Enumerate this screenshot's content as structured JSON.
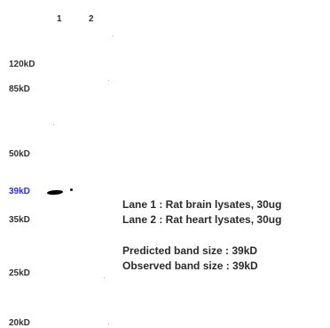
{
  "lanes": [
    "1",
    "2"
  ],
  "markers": [
    {
      "label": "120kD",
      "highlight": false
    },
    {
      "label": "85kD",
      "highlight": false
    },
    {
      "label": "50kD",
      "highlight": false
    },
    {
      "label": "39kD",
      "highlight": true
    },
    {
      "label": "35kD",
      "highlight": false
    },
    {
      "label": "25kD",
      "highlight": false
    },
    {
      "label": "20kD",
      "highlight": false
    }
  ],
  "legend": {
    "lane1": "Lane 1 : Rat brain lysates, 30ug",
    "lane2": "Lane 2 : Rat heart lysates, 30ug",
    "predicted": "Predicted band size : 39kD",
    "observed": "Observed band size : 39kD"
  },
  "colors": {
    "highlight_marker": "#2e2ec8",
    "band": "#000000"
  }
}
